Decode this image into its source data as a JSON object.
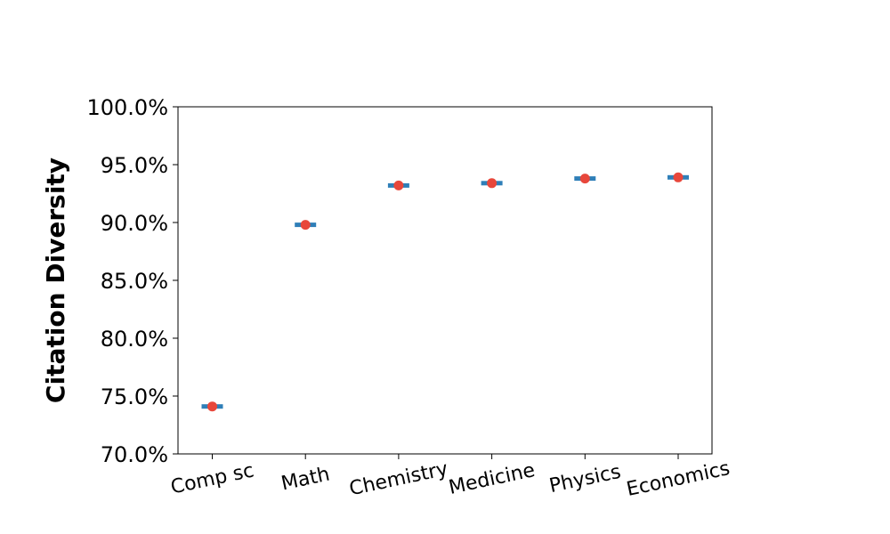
{
  "chart_data": {
    "type": "scatter",
    "title": "",
    "xlabel": "",
    "ylabel": "Citation Diversity",
    "categories": [
      "Comp sc",
      "Math",
      "Chemistry",
      "Medicine",
      "Physics",
      "Economics"
    ],
    "series": [
      {
        "values": [
          0.741,
          0.898,
          0.932,
          0.934,
          0.938,
          0.939
        ],
        "point_color": "#e8473b",
        "bar_color": "#2f7fb8"
      }
    ],
    "ylim": [
      0.7,
      1.0
    ],
    "yticks": [
      0.7,
      0.75,
      0.8,
      0.85,
      0.9,
      0.95,
      1.0
    ],
    "ytick_labels": [
      "70.0%",
      "75.0%",
      "80.0%",
      "85.0%",
      "90.0%",
      "95.0%",
      "100.0%"
    ],
    "grid": false,
    "legend": "none"
  }
}
